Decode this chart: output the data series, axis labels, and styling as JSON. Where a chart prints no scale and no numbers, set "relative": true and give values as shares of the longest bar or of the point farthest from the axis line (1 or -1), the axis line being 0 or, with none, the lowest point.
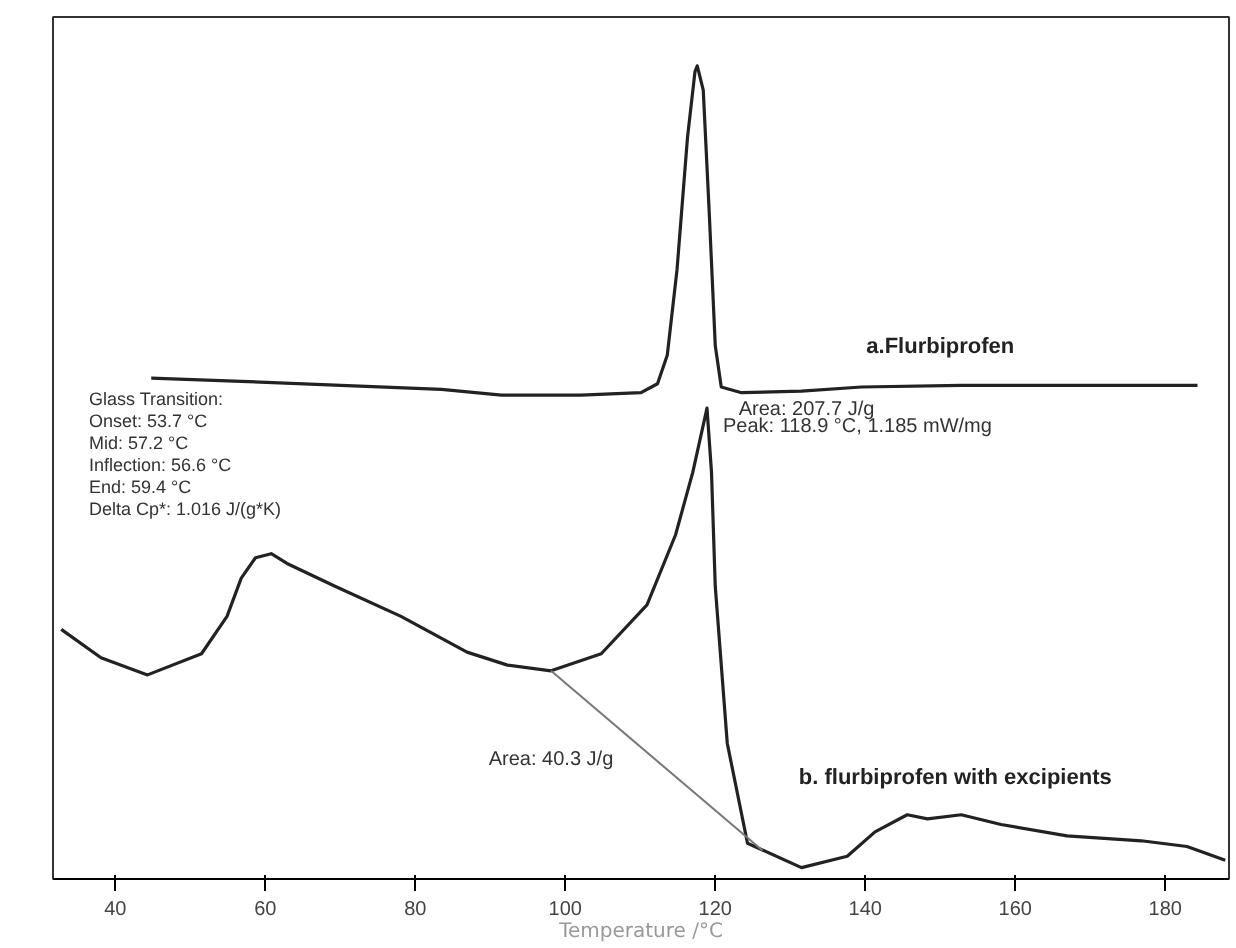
{
  "chart_data": {
    "type": "line",
    "relative": true,
    "xlabel": "Temperature /°C",
    "xlim": [
      31.7,
      188.5
    ],
    "xticks": [
      40,
      60,
      80,
      100,
      120,
      140,
      160,
      180
    ],
    "grid": false,
    "marker": "none",
    "line_style": "solid",
    "series": [
      {
        "name": "a.Flurbiprofen",
        "color": "#222222",
        "x": [
          44.8,
          56.8,
          70.1,
          83.5,
          91.5,
          102.1,
          110.1,
          112.3,
          113.6,
          114.9,
          116.3,
          117.3,
          117.6,
          118.4,
          119.2,
          120.0,
          120.8,
          123.5,
          131.5,
          139.5,
          152.8,
          166.1,
          184.3
        ],
        "values": [
          0.616,
          0.612,
          0.607,
          0.602,
          0.595,
          0.595,
          0.598,
          0.609,
          0.644,
          0.749,
          0.912,
          0.993,
          1.0,
          0.97,
          0.819,
          0.656,
          0.605,
          0.598,
          0.6,
          0.605,
          0.607,
          0.607,
          0.607
        ]
      },
      {
        "name": "b. flurbiprofen with excipients",
        "color": "#222222",
        "x": [
          32.8,
          38.1,
          44.3,
          51.5,
          54.9,
          56.8,
          58.7,
          60.8,
          62.9,
          69.3,
          78.1,
          86.9,
          92.3,
          98.1,
          104.8,
          110.9,
          114.7,
          117.0,
          118.9,
          119.5,
          120.0,
          121.6,
          124.3,
          131.5,
          137.6,
          141.3,
          145.6,
          148.3,
          152.8,
          158.1,
          166.9,
          176.8,
          182.9,
          188.0
        ],
        "values": [
          0.307,
          0.272,
          0.251,
          0.277,
          0.323,
          0.37,
          0.395,
          0.4,
          0.388,
          0.36,
          0.323,
          0.279,
          0.263,
          0.256,
          0.277,
          0.337,
          0.423,
          0.5,
          0.579,
          0.5,
          0.36,
          0.167,
          0.044,
          0.014,
          0.028,
          0.058,
          0.079,
          0.074,
          0.079,
          0.067,
          0.053,
          0.047,
          0.04,
          0.023
        ]
      },
      {
        "type": "line",
        "color": "#777777",
        "x": [
          98.1,
          126.3
        ],
        "values": [
          0.256,
          0.035
        ]
      }
    ],
    "annotations": [
      {
        "text": "Area: 207.7 J/g",
        "x": 121,
        "y": 0.6
      },
      {
        "text": "Peak: 118.9 °C, 1.185 mW/mg",
        "x": 118.9,
        "y": 0.579
      },
      {
        "text": "Area: 40.3 J/g",
        "x": 108,
        "y": 0.17
      },
      "Glass Transition:",
      "Onset:      53.7 °C",
      "Mid:          57.2 °C",
      "Inflection:  56.6 °C",
      "End:          59.4 °C",
      "Delta Cp*:    1.016 J/(g*K)"
    ]
  }
}
